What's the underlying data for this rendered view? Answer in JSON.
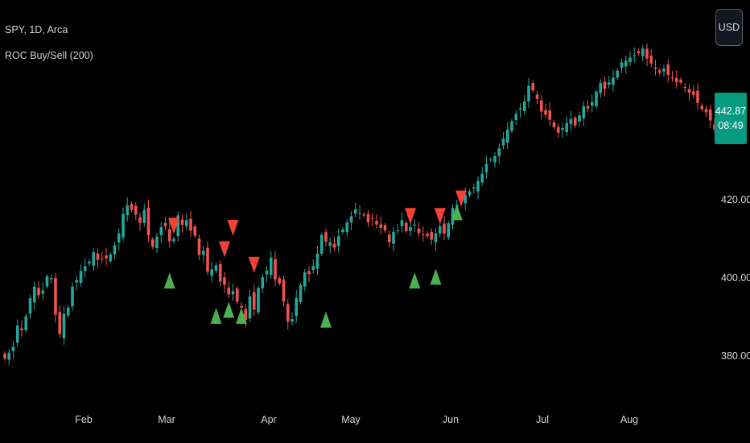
{
  "header": {
    "symbol_line": "SPY, 1D, Arca",
    "indicator_line": "ROC Buy/Sell (200)"
  },
  "price_scale": {
    "currency_button": "USD",
    "last_price": "442.87",
    "countdown": "08:49",
    "tick_labels": [
      "420.00",
      "400.00",
      "380.00"
    ]
  },
  "time_axis": {
    "labels": [
      "Feb",
      "Mar",
      "Apr",
      "May",
      "Jun",
      "Jul",
      "Aug"
    ]
  },
  "colors": {
    "up": "#26a69a",
    "down": "#ef5350",
    "buy_marker": "#4caf50",
    "sell_marker": "#f44336",
    "price_tag": "#089981",
    "background": "#000000"
  },
  "chart_data": {
    "type": "candlestick",
    "title": "SPY, 1D, Arca",
    "indicator": "ROC Buy/Sell (200)",
    "ylim": [
      373,
      465
    ],
    "y_ticks": [
      380,
      400,
      420
    ],
    "x_month_ticks": [
      {
        "label": "Feb",
        "index": 26
      },
      {
        "label": "Mar",
        "index": 45
      },
      {
        "label": "Apr",
        "index": 67
      },
      {
        "label": "May",
        "index": 86
      },
      {
        "label": "Jun",
        "index": 109
      },
      {
        "label": "Jul",
        "index": 130
      },
      {
        "label": "Aug",
        "index": 151
      }
    ],
    "closes": [
      380.0,
      381.5,
      383.0,
      388.4,
      387.2,
      390.8,
      395.4,
      398.4,
      396.2,
      397.4,
      401.0,
      400.6,
      391.2,
      386.2,
      391.4,
      393.0,
      398.4,
      400.0,
      402.4,
      403.6,
      404.8,
      407.2,
      405.2,
      405.3,
      405.6,
      406.6,
      409.0,
      412.0,
      417.0,
      419.2,
      418.0,
      416.8,
      414.7,
      417.9,
      411.5,
      408.6,
      411.2,
      413.6,
      413.8,
      410.0,
      410.6,
      416.6,
      414.2,
      415.4,
      412.7,
      411.4,
      406.5,
      407.6,
      402.2,
      402.8,
      403.8,
      399.7,
      398.8,
      396.4,
      397.2,
      394.5,
      393.0,
      389.9,
      395.9,
      392.5,
      398.0,
      400.8,
      402.4,
      405.8,
      400.2,
      399.2,
      394.6,
      389.4,
      390.1,
      395.5,
      398.8,
      402.0,
      401.6,
      403.7,
      406.8,
      411.6,
      409.9,
      409.7,
      408.4,
      411.3,
      413.0,
      414.8,
      416.4,
      418.2,
      417.2,
      416.6,
      414.9,
      415.9,
      414.3,
      413.4,
      412.8,
      409.7,
      412.4,
      412.8,
      415.4,
      412.6,
      413.6,
      414.3,
      412.1,
      411.6,
      411.3,
      410.4,
      412.0,
      413.8,
      412.0,
      414.6,
      418.5,
      419.3,
      420.4,
      421.8,
      422.8,
      423.8,
      425.4,
      427.3,
      429.8,
      430.9,
      431.8,
      433.8,
      436.3,
      438.6,
      440.7,
      442.6,
      444.0,
      445.8,
      449.8,
      448.6,
      446.4,
      443.2,
      442.4,
      441.1,
      439.2,
      437.8,
      439.0,
      440.3,
      441.3,
      439.6,
      442.2,
      444.6,
      444.0,
      445.6,
      448.3,
      450.5,
      449.0,
      450.7,
      451.9,
      453.7,
      455.8,
      456.2,
      457.0,
      457.6,
      458.1,
      459.3,
      456.8,
      455.5,
      454.1,
      453.1,
      454.2,
      452.6,
      451.8,
      450.7,
      450.6,
      449.3,
      448.0,
      447.5,
      445.4,
      443.8,
      443.0,
      440.9,
      438.6,
      436.7,
      438.2,
      440.6,
      442.9
    ],
    "buy_signals": [
      {
        "index": 39,
        "price": 402.0
      },
      {
        "index": 50,
        "price": 393.0
      },
      {
        "index": 53,
        "price": 394.5
      },
      {
        "index": 56,
        "price": 393.0
      },
      {
        "index": 76,
        "price": 392.0
      },
      {
        "index": 97,
        "price": 402.0
      },
      {
        "index": 102,
        "price": 403.0
      },
      {
        "index": 107,
        "price": 419.5
      }
    ],
    "sell_signals": [
      {
        "index": 40,
        "price": 416.0
      },
      {
        "index": 54,
        "price": 415.5
      },
      {
        "index": 52,
        "price": 410.0
      },
      {
        "index": 59,
        "price": 406.0
      },
      {
        "index": 96,
        "price": 418.5
      },
      {
        "index": 103,
        "price": 418.5
      },
      {
        "index": 108,
        "price": 423.0
      }
    ]
  }
}
